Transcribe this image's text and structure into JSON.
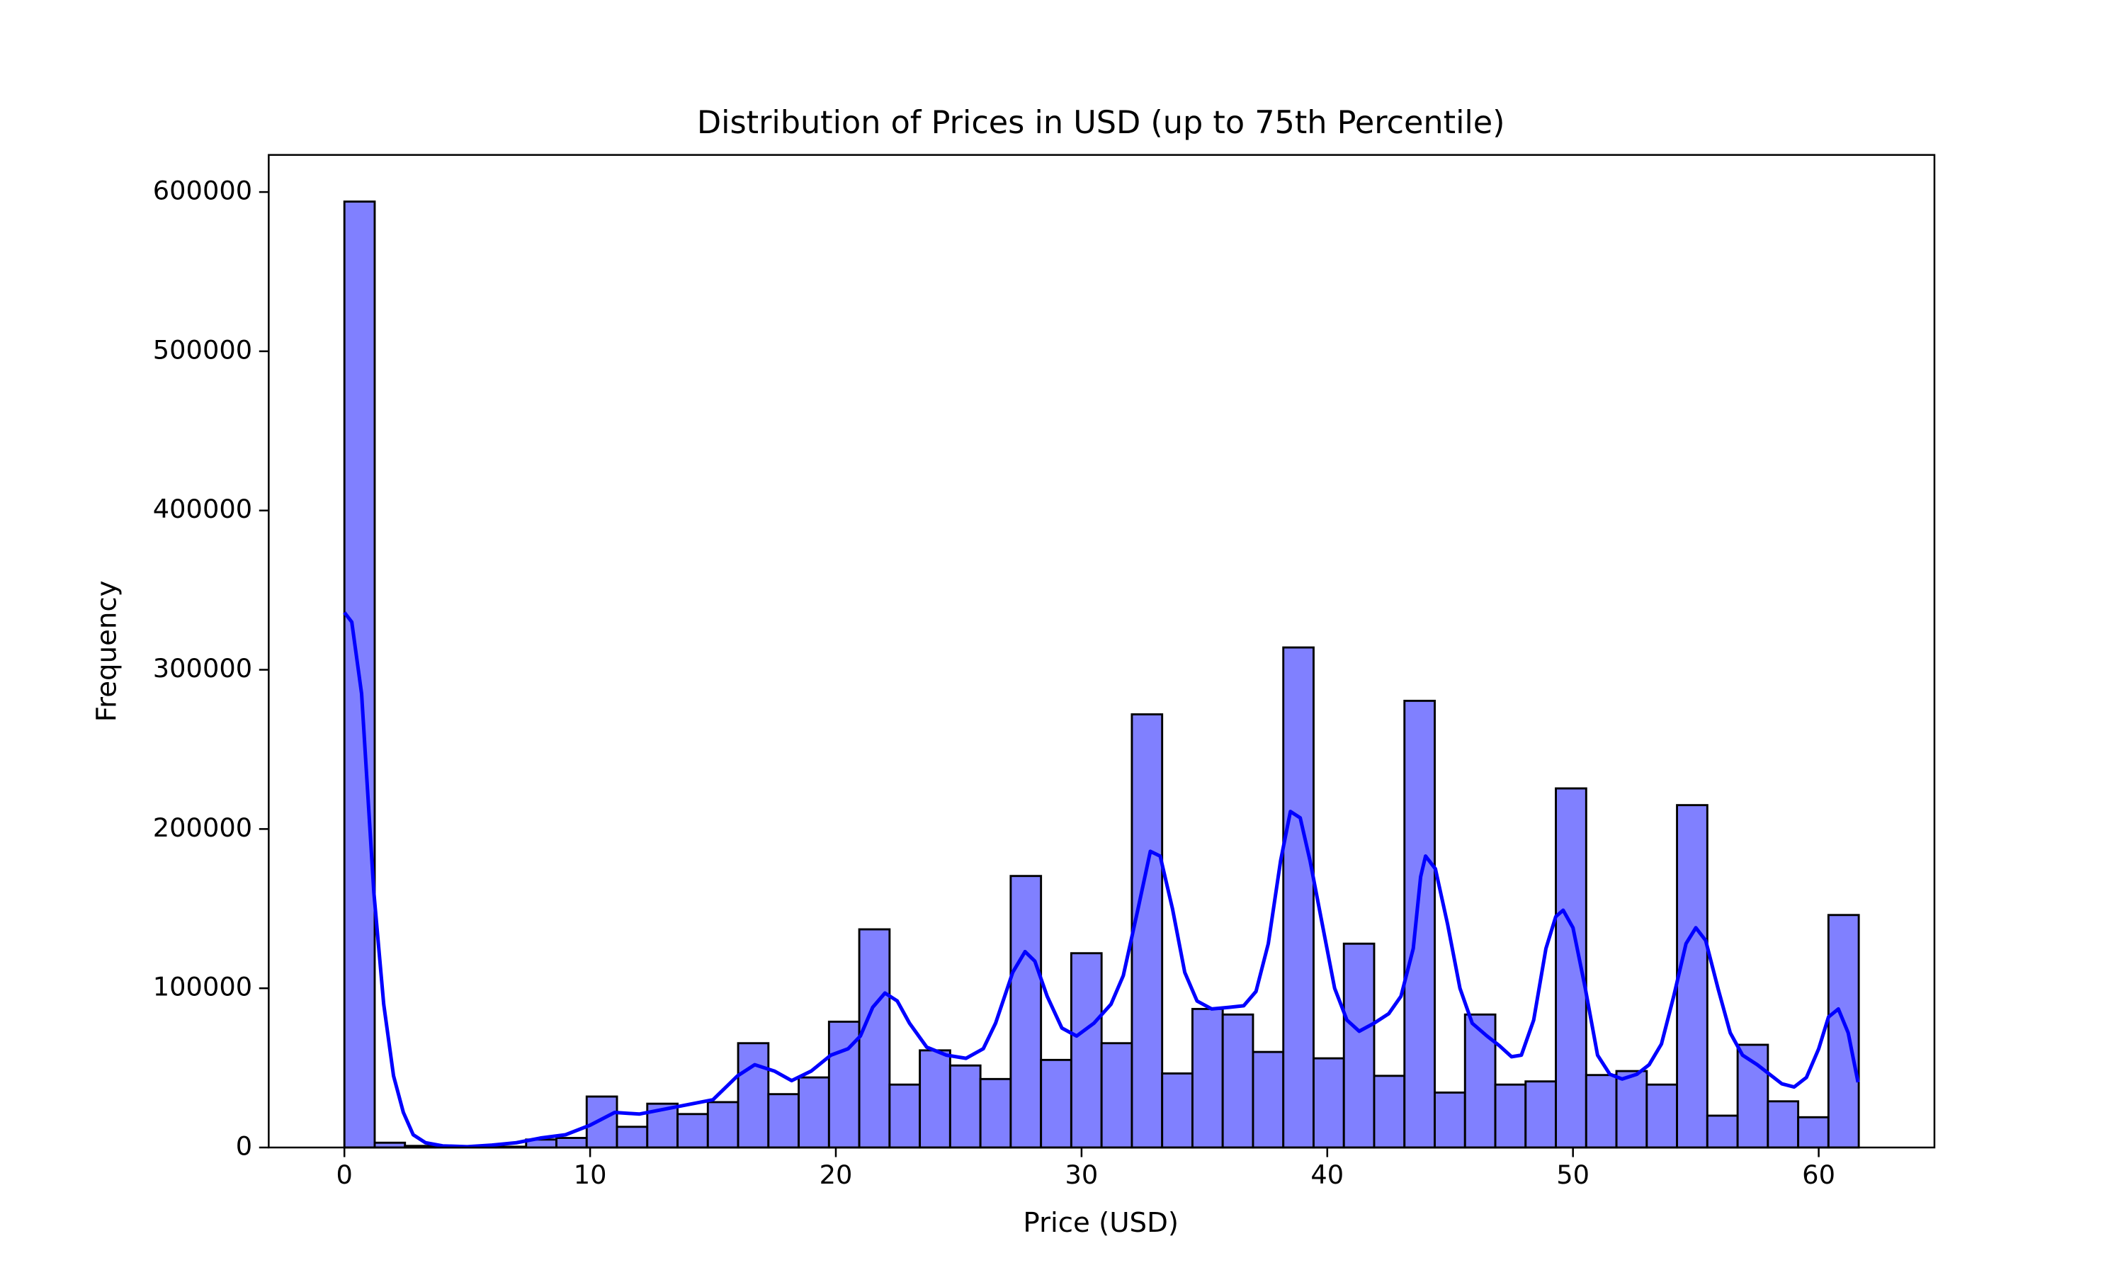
{
  "chart_data": {
    "type": "histogram",
    "title": "Distribution of Prices in USD (up to 75th Percentile)",
    "x_label": "Price (USD)",
    "y_label": "Frequency",
    "bins": [
      0,
      1.233,
      2.465,
      3.698,
      4.93,
      6.163,
      7.396,
      8.628,
      9.861,
      11.093,
      12.326,
      13.559,
      14.791,
      16.024,
      17.256,
      18.489,
      19.722,
      20.954,
      22.187,
      23.419,
      24.652,
      25.885,
      27.117,
      28.35,
      29.582,
      30.815,
      32.048,
      33.28,
      34.513,
      35.745,
      36.978,
      38.211,
      39.443,
      40.676,
      41.908,
      43.141,
      44.374,
      45.606,
      46.839,
      48.071,
      49.304,
      50.537,
      51.769,
      53.002,
      54.234,
      55.467,
      56.7,
      57.932,
      59.165,
      60.397,
      61.63
    ],
    "values": [
      594000,
      3000,
      1000,
      500,
      300,
      500,
      5000,
      6000,
      32000,
      13000,
      27500,
      21000,
      28500,
      65500,
      33500,
      44000,
      79000,
      137000,
      39500,
      61000,
      51500,
      43000,
      170500,
      55000,
      122000,
      65500,
      272000,
      46500,
      87000,
      83500,
      60000,
      314000,
      56000,
      128000,
      45000,
      280500,
      34500,
      83500,
      39500,
      41500,
      225500,
      45500,
      48000,
      39500,
      215000,
      20000,
      64500,
      29000,
      19000,
      146000
    ],
    "color": "#8080ff",
    "edge_color": "#000000",
    "kde": {
      "color": "#0000ff",
      "x": [
        0,
        0.3,
        0.7,
        1.2,
        1.6,
        2.0,
        2.4,
        2.8,
        3.3,
        4,
        5,
        6,
        7,
        8,
        9,
        10,
        11,
        12,
        13,
        14,
        15,
        16,
        16.7,
        17.5,
        18.2,
        19,
        19.8,
        20.5,
        21,
        21.5,
        22,
        22.5,
        23,
        23.7,
        24.5,
        25.3,
        26,
        26.5,
        27.2,
        27.7,
        28.1,
        28.6,
        29.2,
        29.8,
        30.5,
        31.2,
        31.7,
        32.3,
        32.8,
        33.2,
        33.7,
        34.2,
        34.7,
        35.3,
        36,
        36.6,
        37.1,
        37.6,
        38.1,
        38.5,
        38.9,
        39.3,
        39.8,
        40.3,
        40.8,
        41.3,
        41.9,
        42.5,
        43,
        43.5,
        43.8,
        44,
        44.4,
        44.9,
        45.4,
        45.9,
        46.5,
        47,
        47.5,
        47.9,
        48.4,
        48.9,
        49.3,
        49.6,
        50,
        50.5,
        51,
        51.5,
        52,
        52.6,
        53.1,
        53.6,
        54.1,
        54.6,
        55,
        55.4,
        55.9,
        56.4,
        56.9,
        57.5,
        58,
        58.5,
        59,
        59.5,
        60,
        60.4,
        60.8,
        61.2,
        61.6
      ],
      "values": [
        336000,
        330000,
        285000,
        160000,
        90000,
        45000,
        22000,
        8000,
        3000,
        1000,
        500,
        1500,
        3000,
        6000,
        8000,
        14000,
        22000,
        21000,
        24000,
        27000,
        30000,
        45000,
        52000,
        48000,
        42000,
        48000,
        58000,
        62000,
        70000,
        88000,
        97000,
        92000,
        78000,
        63000,
        58000,
        56000,
        62000,
        78000,
        110000,
        123000,
        117000,
        95000,
        75000,
        70000,
        78000,
        90000,
        108000,
        150000,
        186000,
        183000,
        150000,
        110000,
        92000,
        87000,
        88000,
        89000,
        98000,
        128000,
        180000,
        211000,
        207000,
        180000,
        140000,
        100000,
        80000,
        73000,
        78000,
        84000,
        95000,
        125000,
        170000,
        183000,
        175000,
        140000,
        100000,
        78000,
        70000,
        64000,
        57000,
        58000,
        80000,
        125000,
        145000,
        149000,
        138000,
        100000,
        58000,
        46000,
        43000,
        46000,
        52000,
        65000,
        95000,
        128000,
        138000,
        130000,
        100000,
        72000,
        58000,
        52000,
        46000,
        40000,
        38000,
        44000,
        62000,
        82000,
        87000,
        72000,
        41000
      ]
    },
    "xlim": [
      -3.08,
      64.71
    ],
    "ylim": [
      0,
      623300
    ],
    "xticks": [
      0,
      10,
      20,
      30,
      40,
      50,
      60
    ],
    "yticks": [
      0,
      100000,
      200000,
      300000,
      400000,
      500000,
      600000
    ],
    "grid": false
  }
}
